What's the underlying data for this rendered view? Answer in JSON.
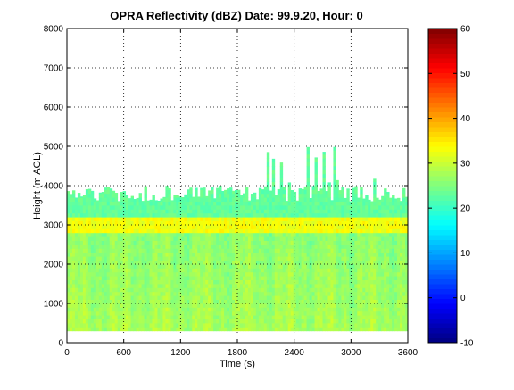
{
  "chart_data": {
    "type": "heatmap",
    "title": "OPRA Reflectivity (dBZ)  Date: 99.9.20, Hour: 0",
    "xlabel": "Time (s)",
    "ylabel": "Height (m AGL)",
    "xlim": [
      0,
      3600
    ],
    "ylim": [
      0,
      8000
    ],
    "x_ticks": [
      "0",
      "600",
      "1200",
      "1800",
      "2400",
      "3000",
      "3600"
    ],
    "y_ticks": [
      "0",
      "1000",
      "2000",
      "3000",
      "4000",
      "5000",
      "6000",
      "7000",
      "8000"
    ],
    "grid": true,
    "colorbar": {
      "colormap": "jet",
      "range": [
        -10,
        60
      ],
      "ticks": [
        "-10",
        "0",
        "10",
        "20",
        "30",
        "40",
        "50",
        "60"
      ]
    },
    "field": {
      "base_height_m": 300,
      "echo_top_typical_m": 3800,
      "echo_top_peak_m": 5000,
      "bright_band_m": [
        2750,
        3150
      ],
      "bright_band_dbz": 33,
      "low_level_dbz": 28,
      "top_edge_dbz": 23
    }
  }
}
